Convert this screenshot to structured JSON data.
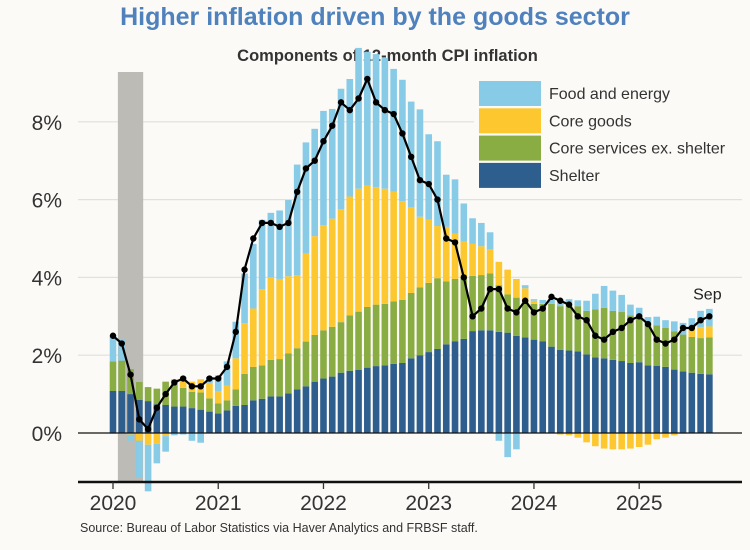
{
  "chart_data": {
    "type": "bar",
    "stacked": true,
    "title": "Higher inflation driven by the goods sector",
    "subtitle": "Components of 12-month CPI inflation",
    "xlabel": "",
    "ylabel": "",
    "ylim": [
      -1.25,
      9.0
    ],
    "yticks": [
      0,
      2,
      4,
      6,
      8
    ],
    "ytick_labels": [
      "0%",
      "2%",
      "4%",
      "6%",
      "8%"
    ],
    "xticks": [
      "2020",
      "2021",
      "2022",
      "2023",
      "2024",
      "2025"
    ],
    "grid": true,
    "legend_position": "top-right",
    "start_month": "2020-01",
    "end_month": "2025-09",
    "recession_shading": {
      "start": "2020-02",
      "end": "2020-04"
    },
    "annotation": {
      "text": "Sep",
      "month": "2025-09"
    },
    "source": "Source: Bureau of Labor Statistics via Haver Analytics and FRBSF staff.",
    "colors": {
      "food_energy": "#87cbe7",
      "core_goods": "#fdc82f",
      "core_services_ex_shelter": "#89ac43",
      "shelter": "#2e5e8e",
      "line": "#000000",
      "recession": "#bcbbb6"
    },
    "legend": [
      {
        "key": "food_energy",
        "label": "Food and energy"
      },
      {
        "key": "core_goods",
        "label": "Core goods"
      },
      {
        "key": "core_services_ex_shelter",
        "label": "Core services ex. shelter"
      },
      {
        "key": "shelter",
        "label": "Shelter"
      }
    ],
    "series": [
      {
        "name": "Shelter",
        "key": "shelter",
        "values": [
          1.08,
          1.08,
          1.0,
          0.85,
          0.82,
          0.74,
          0.72,
          0.68,
          0.68,
          0.64,
          0.6,
          0.55,
          0.5,
          0.58,
          0.7,
          0.72,
          0.84,
          0.88,
          0.94,
          0.94,
          1.02,
          1.12,
          1.2,
          1.32,
          1.4,
          1.45,
          1.55,
          1.6,
          1.62,
          1.68,
          1.72,
          1.74,
          1.78,
          1.8,
          1.92,
          2.0,
          2.08,
          2.16,
          2.28,
          2.36,
          2.42,
          2.62,
          2.64,
          2.64,
          2.6,
          2.58,
          2.5,
          2.46,
          2.4,
          2.36,
          2.22,
          2.14,
          2.12,
          2.1,
          2.02,
          1.94,
          1.92,
          1.88,
          1.85,
          1.8,
          1.82,
          1.74,
          1.73,
          1.7,
          1.63,
          1.58,
          1.55,
          1.52,
          1.51
        ]
      },
      {
        "name": "Core services ex. shelter",
        "key": "core_services_ex_shelter",
        "values": [
          0.76,
          0.78,
          0.64,
          0.46,
          0.36,
          0.4,
          0.6,
          0.58,
          0.48,
          0.42,
          0.44,
          0.34,
          0.26,
          0.26,
          0.42,
          0.8,
          0.86,
          0.86,
          0.94,
          0.96,
          1.03,
          1.06,
          1.15,
          1.2,
          1.24,
          1.28,
          1.3,
          1.42,
          1.5,
          1.56,
          1.58,
          1.58,
          1.6,
          1.62,
          1.68,
          1.74,
          1.78,
          1.82,
          1.62,
          1.6,
          1.56,
          1.42,
          1.42,
          1.46,
          1.2,
          0.98,
          0.98,
          0.9,
          0.92,
          0.96,
          1.1,
          1.12,
          1.14,
          1.16,
          1.12,
          1.24,
          1.3,
          1.26,
          1.26,
          1.22,
          1.18,
          1.04,
          1.04,
          1.0,
          0.98,
          0.95,
          0.92,
          0.92,
          0.95
        ]
      },
      {
        "name": "Core goods",
        "key": "core_goods",
        "values": [
          -0.02,
          0.0,
          -0.04,
          -0.2,
          -0.3,
          -0.28,
          -0.08,
          0.12,
          0.18,
          0.26,
          0.34,
          0.4,
          0.32,
          0.38,
          0.8,
          1.3,
          1.5,
          1.96,
          2.12,
          2.06,
          1.98,
          1.88,
          2.26,
          2.54,
          2.7,
          2.78,
          2.9,
          3.06,
          3.16,
          3.12,
          3.02,
          2.96,
          2.82,
          2.54,
          2.2,
          1.82,
          1.62,
          1.34,
          1.4,
          1.16,
          0.94,
          0.82,
          0.74,
          0.62,
          0.6,
          0.64,
          0.48,
          0.36,
          0.08,
          0.02,
          0.0,
          -0.04,
          -0.06,
          -0.12,
          -0.24,
          -0.34,
          -0.4,
          -0.42,
          -0.42,
          -0.4,
          -0.36,
          -0.3,
          -0.16,
          -0.12,
          -0.06,
          -0.02,
          0.24,
          0.28,
          0.28
        ]
      },
      {
        "name": "Food and energy",
        "key": "food_energy",
        "values": [
          0.66,
          0.56,
          -0.16,
          -0.94,
          -1.2,
          -0.5,
          -0.4,
          -0.06,
          -0.04,
          -0.2,
          -0.25,
          0.15,
          0.4,
          0.62,
          0.94,
          1.28,
          1.66,
          1.78,
          1.66,
          1.76,
          1.96,
          2.84,
          2.86,
          2.76,
          2.94,
          2.82,
          3.1,
          3.02,
          3.62,
          3.44,
          3.42,
          3.36,
          3.16,
          3.12,
          2.72,
          2.76,
          2.2,
          2.18,
          1.34,
          1.4,
          0.98,
          0.66,
          0.6,
          0.44,
          -0.2,
          -0.62,
          -0.42,
          0.08,
          0.04,
          0.08,
          0.1,
          0.08,
          0.18,
          0.15,
          0.26,
          0.4,
          0.56,
          0.52,
          0.44,
          0.28,
          0.22,
          0.2,
          0.22,
          0.2,
          0.26,
          0.3,
          0.24,
          0.42,
          0.45
        ]
      },
      {
        "name": "Headline CPI",
        "key": "headline",
        "type": "line",
        "values": [
          2.5,
          2.3,
          1.5,
          0.35,
          0.1,
          0.65,
          1.0,
          1.3,
          1.4,
          1.2,
          1.2,
          1.4,
          1.4,
          1.7,
          2.6,
          4.2,
          5.0,
          5.4,
          5.4,
          5.3,
          5.4,
          6.2,
          6.8,
          7.0,
          7.5,
          7.9,
          8.5,
          8.3,
          8.6,
          9.1,
          8.5,
          8.3,
          8.2,
          7.7,
          7.1,
          6.5,
          6.4,
          6.0,
          5.0,
          4.9,
          4.0,
          3.0,
          3.2,
          3.7,
          3.7,
          3.2,
          3.1,
          3.4,
          3.1,
          3.2,
          3.5,
          3.4,
          3.3,
          3.0,
          2.9,
          2.5,
          2.4,
          2.6,
          2.7,
          2.9,
          3.0,
          2.8,
          2.4,
          2.3,
          2.4,
          2.7,
          2.7,
          2.9,
          3.0
        ]
      }
    ]
  }
}
